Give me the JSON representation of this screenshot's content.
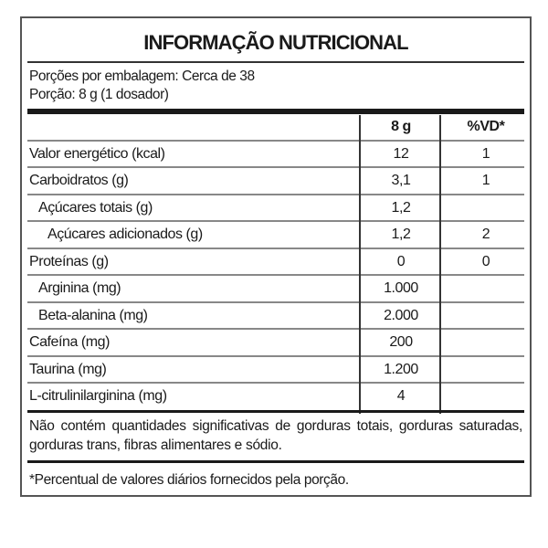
{
  "title": "INFORMAÇÃO NUTRICIONAL",
  "servings_per_package": "Porções por embalagem: Cerca de 38",
  "serving_size": "Porção: 8 g (1 dosador)",
  "table": {
    "headers": [
      "",
      "8 g",
      "%VD*"
    ],
    "rows": [
      {
        "name": "Valor energético (kcal)",
        "value": "12",
        "dv": "1",
        "indent": 0
      },
      {
        "name": "Carboidratos (g)",
        "value": "3,1",
        "dv": "1",
        "indent": 0
      },
      {
        "name": "Açúcares totais (g)",
        "value": "1,2",
        "dv": "",
        "indent": 1
      },
      {
        "name": "Açúcares adicionados (g)",
        "value": "1,2",
        "dv": "2",
        "indent": 2
      },
      {
        "name": "Proteínas (g)",
        "value": "0",
        "dv": "0",
        "indent": 0
      },
      {
        "name": "Arginina (mg)",
        "value": "1.000",
        "dv": "",
        "indent": 1
      },
      {
        "name": "Beta-alanina (mg)",
        "value": "2.000",
        "dv": "",
        "indent": 1
      },
      {
        "name": "Cafeína (mg)",
        "value": "200",
        "dv": "",
        "indent": 0
      },
      {
        "name": "Taurina (mg)",
        "value": "1.200",
        "dv": "",
        "indent": 0
      },
      {
        "name": "L-citrulinilarginina (mg)",
        "value": "4",
        "dv": "",
        "indent": 0
      }
    ]
  },
  "note": "Não contém quantidades significativas de gorduras totais, gorduras saturadas, gorduras trans, fibras alimentares e sódio.",
  "footnote": "*Percentual de valores diários fornecidos pela porção."
}
